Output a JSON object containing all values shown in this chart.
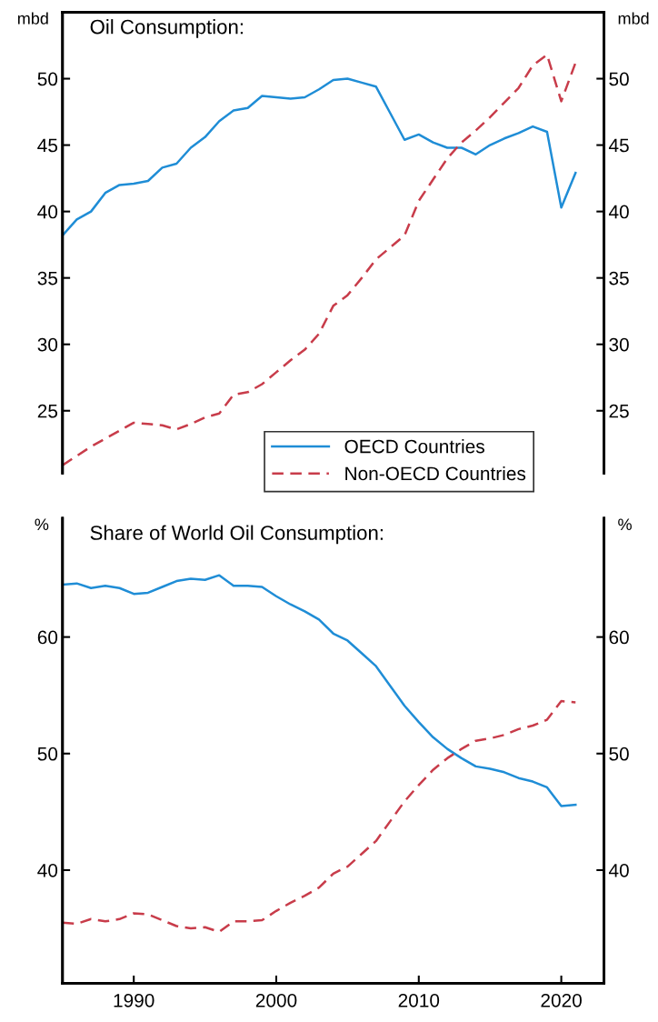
{
  "chart_data": [
    {
      "type": "line",
      "title": "Oil Consumption:",
      "ylabel": "mbd",
      "y2label": "mbd",
      "x": [
        1985,
        1986,
        1987,
        1988,
        1989,
        1990,
        1991,
        1992,
        1993,
        1994,
        1995,
        1996,
        1997,
        1998,
        1999,
        2000,
        2001,
        2002,
        2003,
        2004,
        2005,
        2006,
        2007,
        2008,
        2009,
        2010,
        2011,
        2012,
        2013,
        2014,
        2015,
        2016,
        2017,
        2018,
        2019,
        2020,
        2021
      ],
      "xlim": [
        1985,
        2023
      ],
      "ylim": [
        20.3,
        55
      ],
      "yticks": [
        25,
        30,
        35,
        40,
        45,
        50
      ],
      "y2lim": [
        20.3,
        55
      ],
      "y2ticks": [
        25,
        30,
        35,
        40,
        45,
        50
      ],
      "tick_labels": "y",
      "grid": false,
      "legend": "bottom right",
      "series": [
        {
          "name": "OECD Countries",
          "color": "#1f8dd6",
          "line_style": "solid",
          "values": [
            38.2,
            39.4,
            40.0,
            41.4,
            42.0,
            42.1,
            42.3,
            43.3,
            43.6,
            44.8,
            45.6,
            46.8,
            47.6,
            47.8,
            48.7,
            48.6,
            48.5,
            48.6,
            49.2,
            49.9,
            50.0,
            49.7,
            49.4,
            47.4,
            45.4,
            45.8,
            45.2,
            44.8,
            44.8,
            44.3,
            45.0,
            45.5,
            45.9,
            46.4,
            46.0,
            40.3,
            42.9
          ]
        },
        {
          "name": "Non-OECD Countries",
          "color": "#c83c4a",
          "line_style": "dashed",
          "values": [
            20.9,
            21.6,
            22.3,
            22.9,
            23.5,
            24.1,
            24.0,
            23.9,
            23.6,
            24.0,
            24.5,
            24.8,
            26.2,
            26.4,
            27.0,
            27.9,
            28.8,
            29.6,
            30.8,
            32.9,
            33.7,
            35.0,
            36.4,
            37.3,
            38.2,
            40.8,
            42.4,
            44.0,
            45.2,
            46.1,
            47.1,
            48.2,
            49.3,
            51.0,
            51.8,
            48.3,
            51.2
          ]
        }
      ]
    },
    {
      "type": "line",
      "title": "Share of World Oil Consumption:",
      "ylabel": "%",
      "y2label": "%",
      "x": [
        1985,
        1986,
        1987,
        1988,
        1989,
        1990,
        1991,
        1992,
        1993,
        1994,
        1995,
        1996,
        1997,
        1998,
        1999,
        2000,
        2001,
        2002,
        2003,
        2004,
        2005,
        2006,
        2007,
        2008,
        2009,
        2010,
        2011,
        2012,
        2013,
        2014,
        2015,
        2016,
        2017,
        2018,
        2019,
        2020,
        2021
      ],
      "xlim": [
        1985,
        2023
      ],
      "xticks": [
        1990,
        2000,
        2010,
        2020
      ],
      "ylim": [
        30.3,
        70.2
      ],
      "yticks": [
        40,
        50,
        60
      ],
      "y2lim": [
        30.3,
        70.2
      ],
      "y2ticks": [
        40,
        50,
        60
      ],
      "grid": false,
      "series": [
        {
          "color": "#1f8dd6",
          "line_style": "solid",
          "values": [
            64.5,
            64.6,
            64.2,
            64.4,
            64.2,
            63.7,
            63.8,
            64.3,
            64.8,
            65.0,
            64.9,
            65.3,
            64.4,
            64.4,
            64.3,
            63.5,
            62.8,
            62.2,
            61.5,
            60.3,
            59.7,
            58.6,
            57.5,
            55.8,
            54.1,
            52.7,
            51.4,
            50.4,
            49.6,
            48.9,
            48.7,
            48.4,
            47.9,
            47.6,
            47.1,
            45.5,
            45.6
          ]
        },
        {
          "color": "#c83c4a",
          "line_style": "dashed",
          "values": [
            35.5,
            35.4,
            35.8,
            35.6,
            35.8,
            36.3,
            36.2,
            35.7,
            35.2,
            35.0,
            35.1,
            34.7,
            35.6,
            35.6,
            35.7,
            36.5,
            37.2,
            37.8,
            38.5,
            39.7,
            40.3,
            41.4,
            42.5,
            44.2,
            45.9,
            47.3,
            48.6,
            49.6,
            50.4,
            51.1,
            51.3,
            51.6,
            52.1,
            52.4,
            52.9,
            54.5,
            54.4
          ]
        }
      ]
    }
  ]
}
